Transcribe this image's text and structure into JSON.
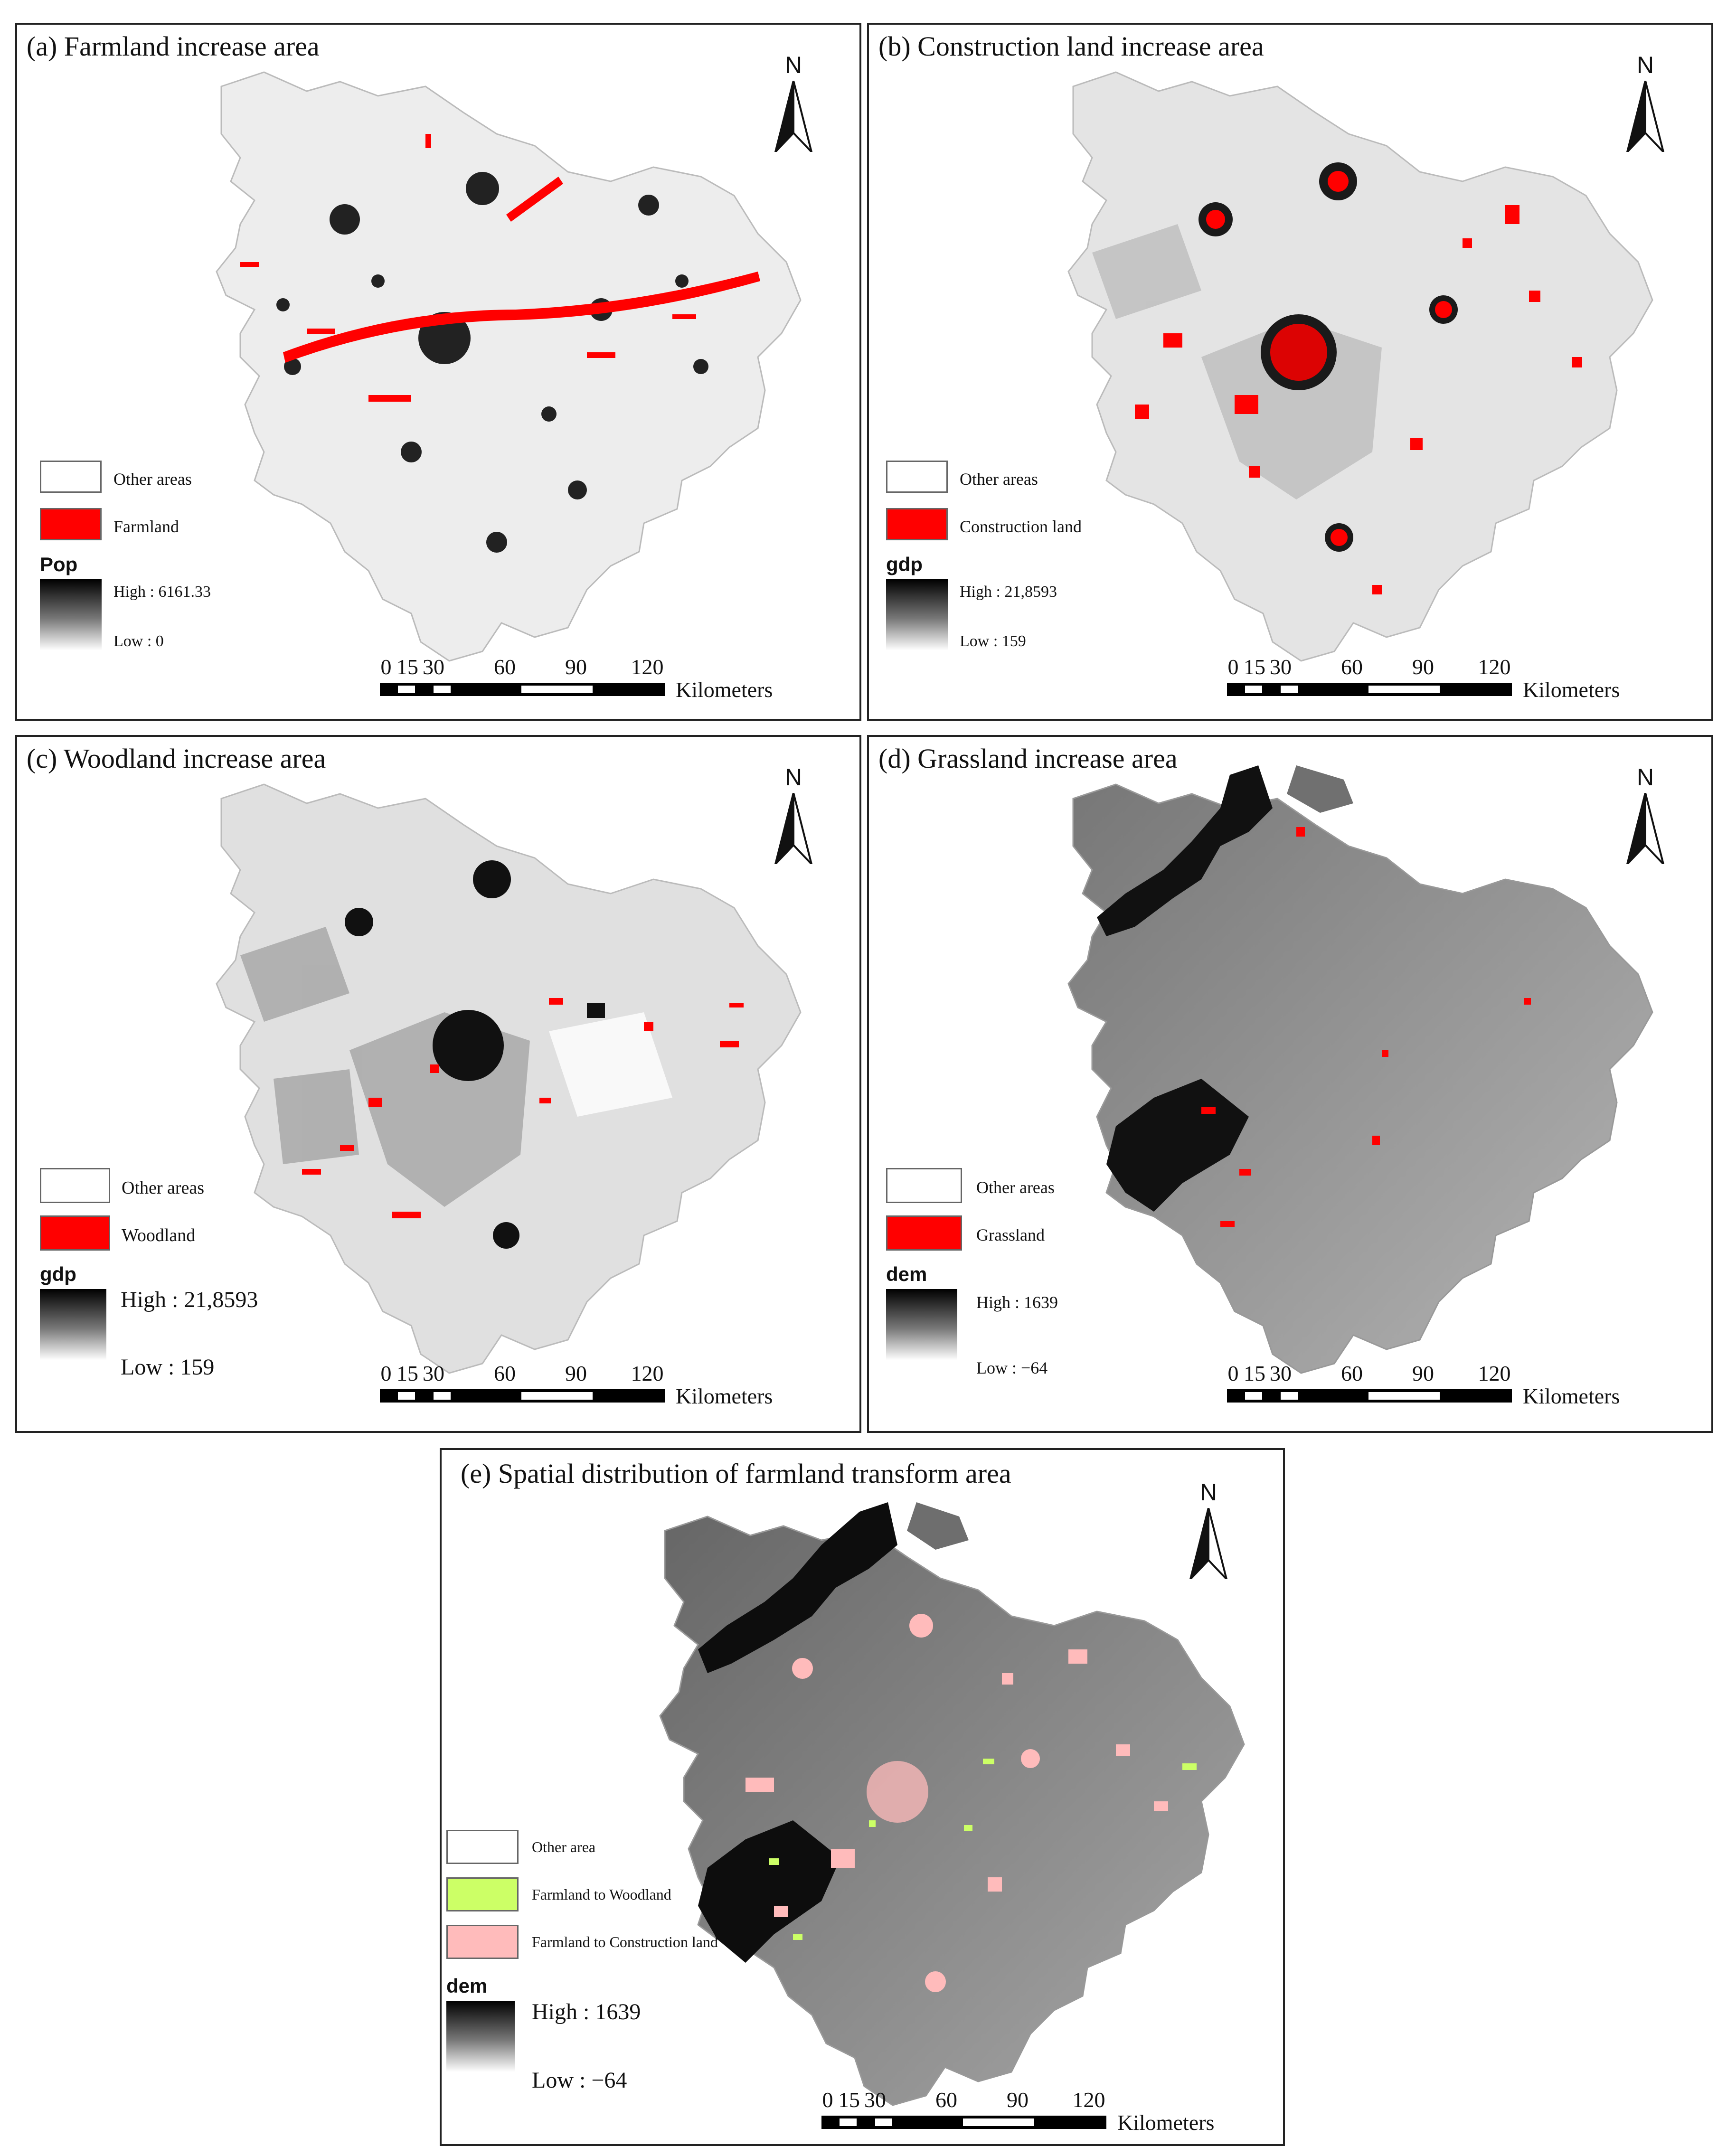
{
  "colors": {
    "red": "#ff0000",
    "woodland_green": "#ccff66",
    "construction_pink": "#ffbbbb",
    "frame": "#222222"
  },
  "panels": {
    "a": {
      "title": "(a) Farmland increase area",
      "north": "N",
      "legend": {
        "other": "Other areas",
        "class": "Farmland"
      },
      "ramp": {
        "name": "Pop",
        "high": "High : 6161.33",
        "low": "Low : 0"
      }
    },
    "b": {
      "title": "(b) Construction land  increase area",
      "north": "N",
      "legend": {
        "other": "Other areas",
        "class": "Construction land"
      },
      "ramp": {
        "name": "gdp",
        "high": "High : 21,8593",
        "low": "Low : 159"
      }
    },
    "c": {
      "title": "(c) Woodland increase area",
      "north": "N",
      "legend": {
        "other": "Other areas",
        "class": "Woodland"
      },
      "ramp": {
        "name": "gdp",
        "high": "High : 21,8593",
        "low": "Low : 159"
      }
    },
    "d": {
      "title": "(d) Grassland increase area",
      "north": "N",
      "legend": {
        "other": "Other areas",
        "class": "Grassland"
      },
      "ramp": {
        "name": "dem",
        "high": "High : 1639",
        "low": "Low : −64"
      }
    },
    "e": {
      "title": "(e) Spatial distribution of farmland transform area",
      "north": "N",
      "legend": {
        "other": "Other area",
        "class1": "Farmland to Woodland",
        "class2": "Farmland to Construction land"
      },
      "ramp": {
        "name": "dem",
        "high": "High : 1639",
        "low": "Low : −64"
      }
    }
  },
  "scalebar": {
    "ticks": [
      "0",
      "15",
      "30",
      "60",
      "90",
      "120"
    ],
    "unit": "Kilometers"
  }
}
